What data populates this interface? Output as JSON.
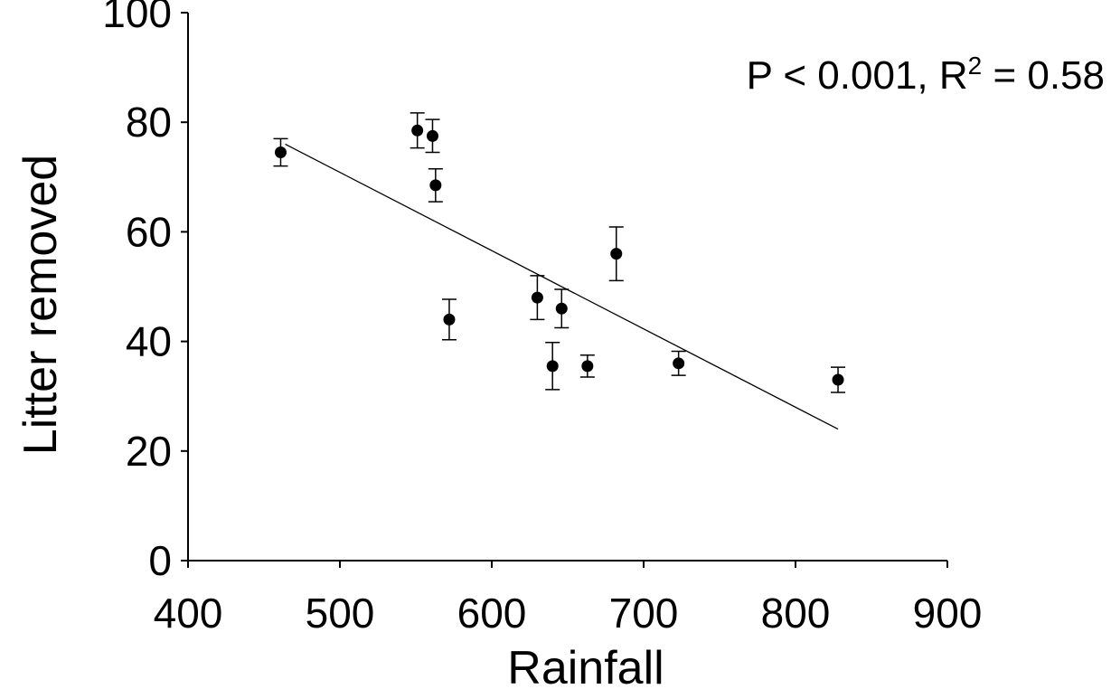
{
  "chart_data": {
    "type": "scatter",
    "title": "",
    "xlabel": "Rainfall",
    "ylabel": "Litter removed",
    "xlim": [
      400,
      900
    ],
    "ylim": [
      0,
      100
    ],
    "x_ticks": [
      "400",
      "500",
      "600",
      "700",
      "800",
      "900"
    ],
    "y_ticks": [
      "0",
      "20",
      "40",
      "60",
      "80",
      "100"
    ],
    "grid": false,
    "annotation": {
      "prefix": "P < 0.001, R",
      "superscript": "2",
      "suffix": " = 0.58"
    },
    "points": [
      {
        "x": 461,
        "y": 74.5,
        "err": 2.5
      },
      {
        "x": 551,
        "y": 78.5,
        "err": 3.2
      },
      {
        "x": 561,
        "y": 77.5,
        "err": 3.0
      },
      {
        "x": 563,
        "y": 68.5,
        "err": 3.0
      },
      {
        "x": 572,
        "y": 44.0,
        "err": 3.7
      },
      {
        "x": 630,
        "y": 48.0,
        "err": 4.0
      },
      {
        "x": 640,
        "y": 35.5,
        "err": 4.3
      },
      {
        "x": 646,
        "y": 46.0,
        "err": 3.5
      },
      {
        "x": 663,
        "y": 35.5,
        "err": 2.0
      },
      {
        "x": 682,
        "y": 56.0,
        "err": 4.9
      },
      {
        "x": 723,
        "y": 36.0,
        "err": 2.2
      },
      {
        "x": 828,
        "y": 33.0,
        "err": 2.3
      }
    ],
    "trendline": {
      "x": [
        464,
        828
      ],
      "y": [
        76.0,
        24.0
      ]
    },
    "colors": {
      "points": "#000000",
      "line": "#000000",
      "axes": "#000000"
    }
  }
}
